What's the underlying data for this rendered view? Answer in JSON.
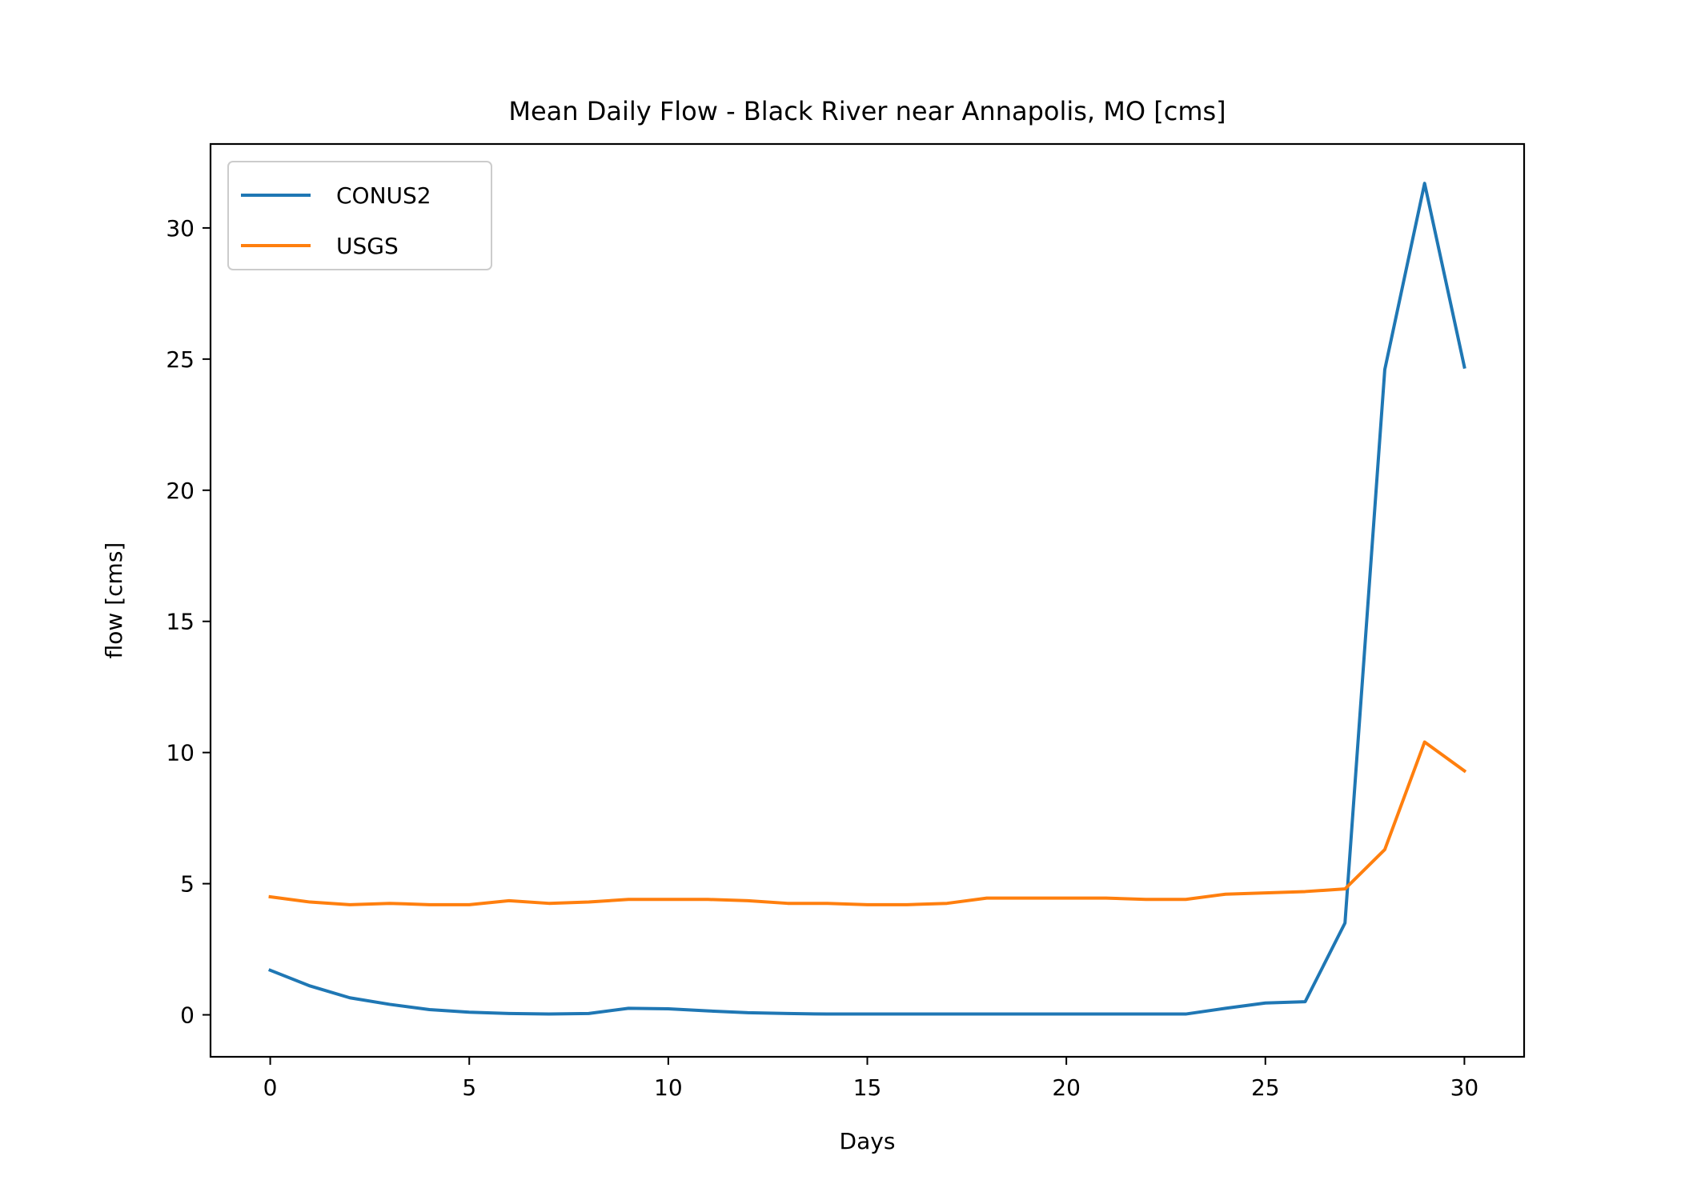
{
  "chart_data": {
    "type": "line",
    "title": "Mean Daily Flow - Black River near Annapolis, MO [cms]",
    "xlabel": "Days",
    "ylabel": "flow [cms]",
    "xlim": [
      -1.5,
      31.5
    ],
    "ylim": [
      -1.6,
      33.2
    ],
    "xticks": [
      0,
      5,
      10,
      15,
      20,
      25,
      30
    ],
    "yticks": [
      0,
      5,
      10,
      15,
      20,
      25,
      30
    ],
    "grid": false,
    "legend_position": "upper-left",
    "x": [
      0,
      1,
      2,
      3,
      4,
      5,
      6,
      7,
      8,
      9,
      10,
      11,
      12,
      13,
      14,
      15,
      16,
      17,
      18,
      19,
      20,
      21,
      22,
      23,
      24,
      25,
      26,
      27,
      28,
      29,
      30
    ],
    "series": [
      {
        "name": "CONUS2",
        "color": "#1f77b4",
        "values": [
          1.7,
          1.1,
          0.65,
          0.4,
          0.2,
          0.1,
          0.05,
          0.03,
          0.05,
          0.25,
          0.23,
          0.15,
          0.08,
          0.05,
          0.03,
          0.03,
          0.03,
          0.03,
          0.03,
          0.03,
          0.03,
          0.03,
          0.03,
          0.03,
          0.25,
          0.45,
          0.5,
          3.5,
          24.6,
          31.7,
          24.7
        ]
      },
      {
        "name": "USGS",
        "color": "#ff7f0e",
        "values": [
          4.5,
          4.3,
          4.2,
          4.25,
          4.2,
          4.2,
          4.35,
          4.25,
          4.3,
          4.4,
          4.4,
          4.4,
          4.35,
          4.25,
          4.25,
          4.2,
          4.2,
          4.25,
          4.45,
          4.45,
          4.45,
          4.45,
          4.4,
          4.4,
          4.6,
          4.65,
          4.7,
          4.8,
          6.3,
          10.4,
          9.3
        ]
      }
    ]
  }
}
